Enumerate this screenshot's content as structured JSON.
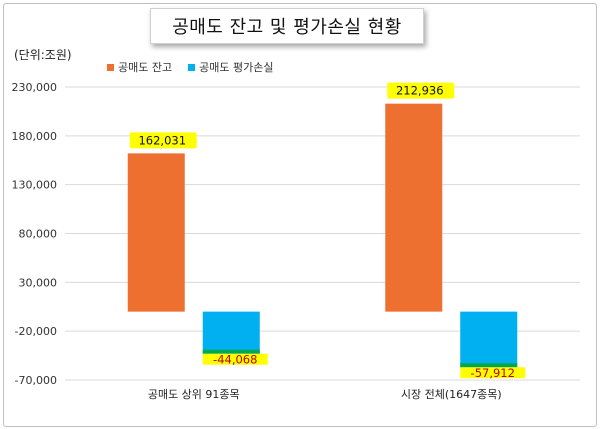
{
  "title": "공매도 잔고 및 평가손실 현황",
  "unit_label": "(단위:조원)",
  "colors": {
    "balance": "#ed7030",
    "loss": "#00b0f0",
    "highlight": "#ffff00",
    "loss_band": "#00a84f",
    "negative_text": "#c00000"
  },
  "chart_data": {
    "type": "bar",
    "title": "공매도 잔고 및 평가손실 현황",
    "ylabel": "(단위:조원)",
    "ylim": [
      -70000,
      230000
    ],
    "yticks": [
      -70000,
      -20000,
      30000,
      80000,
      130000,
      180000,
      230000
    ],
    "ytick_labels": [
      "-70,000",
      "-20,000",
      "30,000",
      "80,000",
      "130,000",
      "180,000",
      "230,000"
    ],
    "grid": true,
    "legend_position": "top-left",
    "categories": [
      "공매도 상위 91종목",
      "시장 전체(1647종목)"
    ],
    "series": [
      {
        "name": "공매도 잔고",
        "values": [
          162031,
          212936
        ],
        "labels": [
          "162,031",
          "212,936"
        ]
      },
      {
        "name": "공매도 평가손실",
        "values": [
          -44068,
          -57912
        ],
        "labels": [
          "-44,068",
          "-57,912"
        ]
      }
    ]
  }
}
